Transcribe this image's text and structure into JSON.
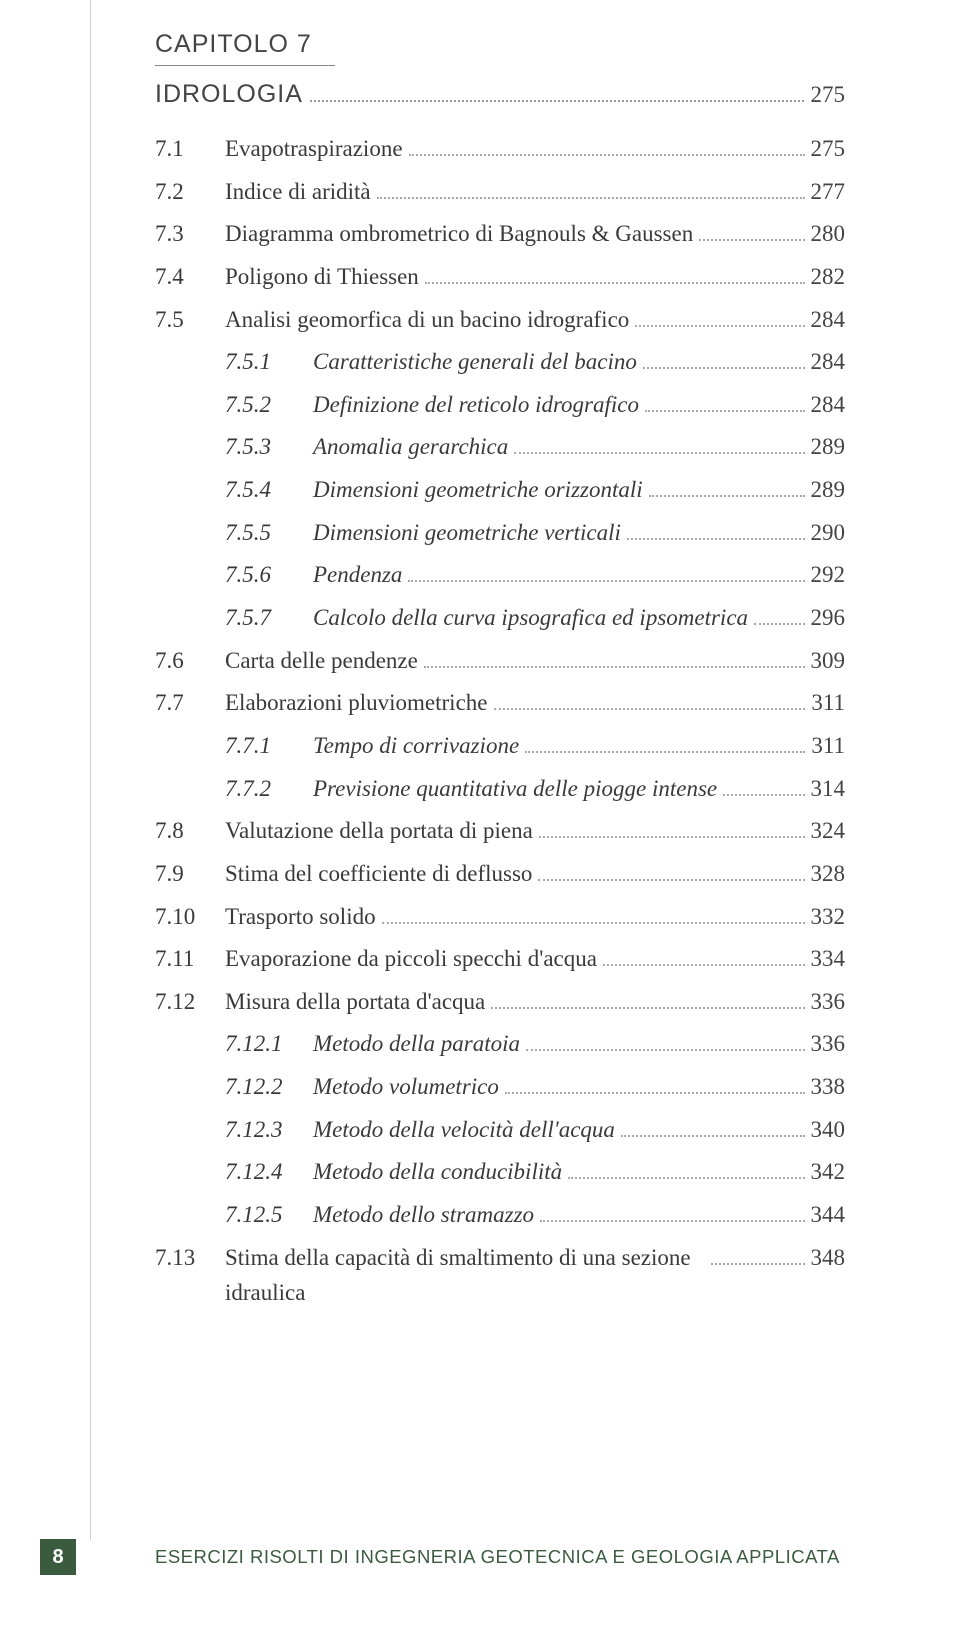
{
  "chapter": {
    "label": "CAPITOLO 7",
    "title": "IDROLOGIA",
    "page": "275"
  },
  "entries": [
    {
      "level": 1,
      "num": "7.1",
      "label": "Evapotraspirazione",
      "page": "275",
      "italic": false
    },
    {
      "level": 1,
      "num": "7.2",
      "label": "Indice di aridità",
      "page": "277",
      "italic": false
    },
    {
      "level": 1,
      "num": "7.3",
      "label": "Diagramma ombrometrico di Bagnouls & Gaussen",
      "page": "280",
      "italic": false
    },
    {
      "level": 1,
      "num": "7.4",
      "label": "Poligono di Thiessen",
      "page": "282",
      "italic": false
    },
    {
      "level": 1,
      "num": "7.5",
      "label": "Analisi geomorfica di un bacino idrografico",
      "page": "284",
      "italic": false
    },
    {
      "level": 2,
      "num": "7.5.1",
      "label": "Caratteristiche generali del bacino",
      "page": "284",
      "italic": true
    },
    {
      "level": 2,
      "num": "7.5.2",
      "label": "Definizione del reticolo idrografico",
      "page": "284",
      "italic": true
    },
    {
      "level": 2,
      "num": "7.5.3",
      "label": "Anomalia gerarchica",
      "page": "289",
      "italic": true
    },
    {
      "level": 2,
      "num": "7.5.4",
      "label": "Dimensioni geometriche orizzontali",
      "page": "289",
      "italic": true
    },
    {
      "level": 2,
      "num": "7.5.5",
      "label": "Dimensioni geometriche verticali",
      "page": "290",
      "italic": true
    },
    {
      "level": 2,
      "num": "7.5.6",
      "label": "Pendenza",
      "page": "292",
      "italic": true
    },
    {
      "level": 2,
      "num": "7.5.7",
      "label": "Calcolo della curva ipsografica ed ipsometrica",
      "page": "296",
      "italic": true
    },
    {
      "level": 1,
      "num": "7.6",
      "label": "Carta delle pendenze",
      "page": "309",
      "italic": false
    },
    {
      "level": 1,
      "num": "7.7",
      "label": "Elaborazioni pluviometriche",
      "page": "311",
      "italic": false
    },
    {
      "level": 2,
      "num": "7.7.1",
      "label": "Tempo di corrivazione",
      "page": "311",
      "italic": true
    },
    {
      "level": 2,
      "num": "7.7.2",
      "label": "Previsione quantitativa delle piogge intense",
      "page": "314",
      "italic": true
    },
    {
      "level": 1,
      "num": "7.8",
      "label": "Valutazione della portata di piena",
      "page": "324",
      "italic": false
    },
    {
      "level": 1,
      "num": "7.9",
      "label": "Stima del coefficiente di deflusso",
      "page": "328",
      "italic": false
    },
    {
      "level": 1,
      "num": "7.10",
      "label": "Trasporto solido",
      "page": "332",
      "italic": false
    },
    {
      "level": 1,
      "num": "7.11",
      "label": "Evaporazione da piccoli specchi d'acqua",
      "page": "334",
      "italic": false
    },
    {
      "level": 1,
      "num": "7.12",
      "label": "Misura della portata d'acqua",
      "page": "336",
      "italic": false
    },
    {
      "level": 2,
      "num": "7.12.1",
      "label": "Metodo della paratoia",
      "page": "336",
      "italic": true
    },
    {
      "level": 2,
      "num": "7.12.2",
      "label": "Metodo volumetrico",
      "page": "338",
      "italic": true
    },
    {
      "level": 2,
      "num": "7.12.3",
      "label": "Metodo della velocità dell'acqua",
      "page": "340",
      "italic": true
    },
    {
      "level": 2,
      "num": "7.12.4",
      "label": "Metodo della conducibilità",
      "page": "342",
      "italic": true
    },
    {
      "level": 2,
      "num": "7.12.5",
      "label": "Metodo dello stramazzo",
      "page": "344",
      "italic": true
    },
    {
      "level": 1,
      "num": "7.13",
      "label": "Stima della capacità di smaltimento di una sezione idraulica",
      "page": "348",
      "italic": false,
      "multi": true
    }
  ],
  "footer": {
    "page_num": "8",
    "book_title": "ESERCIZI RISOLTI DI INGEGNERIA GEOTECNICA E GEOLOGIA APPLICATA",
    "accent_color": "#3b5b3f"
  },
  "colors": {
    "text": "#3a3a3a",
    "dots": "#aaaaaa",
    "background": "#ffffff"
  }
}
